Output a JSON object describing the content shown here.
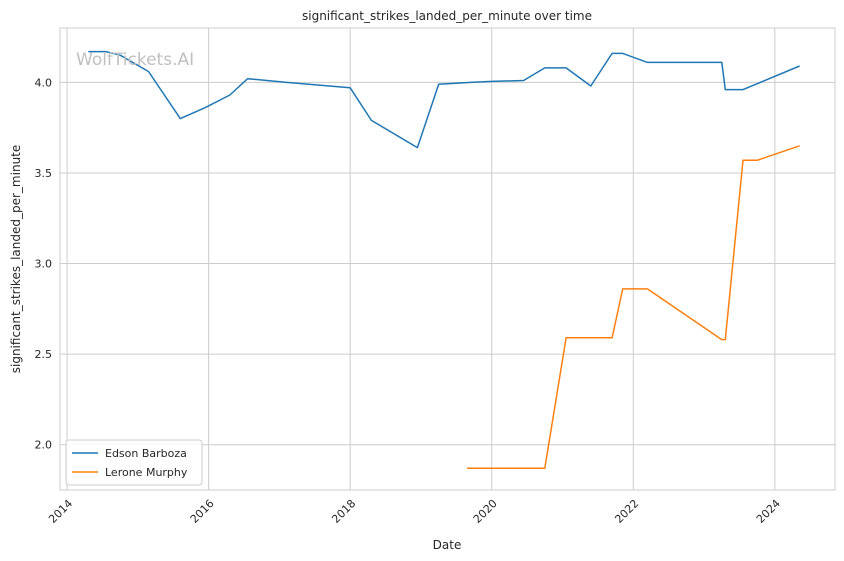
{
  "chart_data": {
    "type": "line",
    "title": "significant_strikes_landed_per_minute over time",
    "xlabel": "Date",
    "ylabel": "significant_strikes_landed_per_minute",
    "xlim": [
      2013.9,
      2024.85
    ],
    "ylim": [
      1.75,
      4.3
    ],
    "x_ticks": [
      2014,
      2016,
      2018,
      2020,
      2022,
      2024
    ],
    "x_tick_labels": [
      "2014",
      "2016",
      "2018",
      "2020",
      "2022",
      "2024"
    ],
    "y_ticks": [
      2.0,
      2.5,
      3.0,
      3.5,
      4.0
    ],
    "y_tick_labels": [
      "2.0",
      "2.5",
      "3.0",
      "3.5",
      "4.0"
    ],
    "grid": true,
    "legend_position": "lower-left",
    "watermark": "WolfTickets.AI",
    "series": [
      {
        "name": "Edson Barboza",
        "color": "#1f77b4",
        "x": [
          2014.3,
          2014.55,
          2014.75,
          2015.15,
          2015.6,
          2015.95,
          2016.3,
          2016.55,
          2017.1,
          2018.0,
          2018.3,
          2018.95,
          2019.25,
          2019.7,
          2020.0,
          2020.45,
          2020.75,
          2021.05,
          2021.4,
          2021.7,
          2021.85,
          2022.2,
          2022.6,
          2023.0,
          2023.25,
          2023.3,
          2023.55,
          2024.35
        ],
        "y": [
          4.17,
          4.17,
          4.15,
          4.06,
          3.8,
          3.86,
          3.93,
          4.02,
          4.0,
          3.97,
          3.79,
          3.64,
          3.99,
          4.0,
          4.005,
          4.01,
          4.08,
          4.08,
          3.98,
          4.16,
          4.16,
          4.11,
          4.11,
          4.11,
          4.11,
          3.96,
          3.96,
          4.09
        ]
      },
      {
        "name": "Lerone Murphy",
        "color": "#ff7f0e",
        "x": [
          2019.65,
          2020.75,
          2021.05,
          2021.7,
          2021.85,
          2022.2,
          2023.25,
          2023.3,
          2023.55,
          2023.75,
          2024.35
        ],
        "y": [
          1.87,
          1.87,
          2.59,
          2.59,
          2.86,
          2.86,
          2.58,
          2.58,
          3.57,
          3.57,
          3.65
        ]
      }
    ]
  }
}
